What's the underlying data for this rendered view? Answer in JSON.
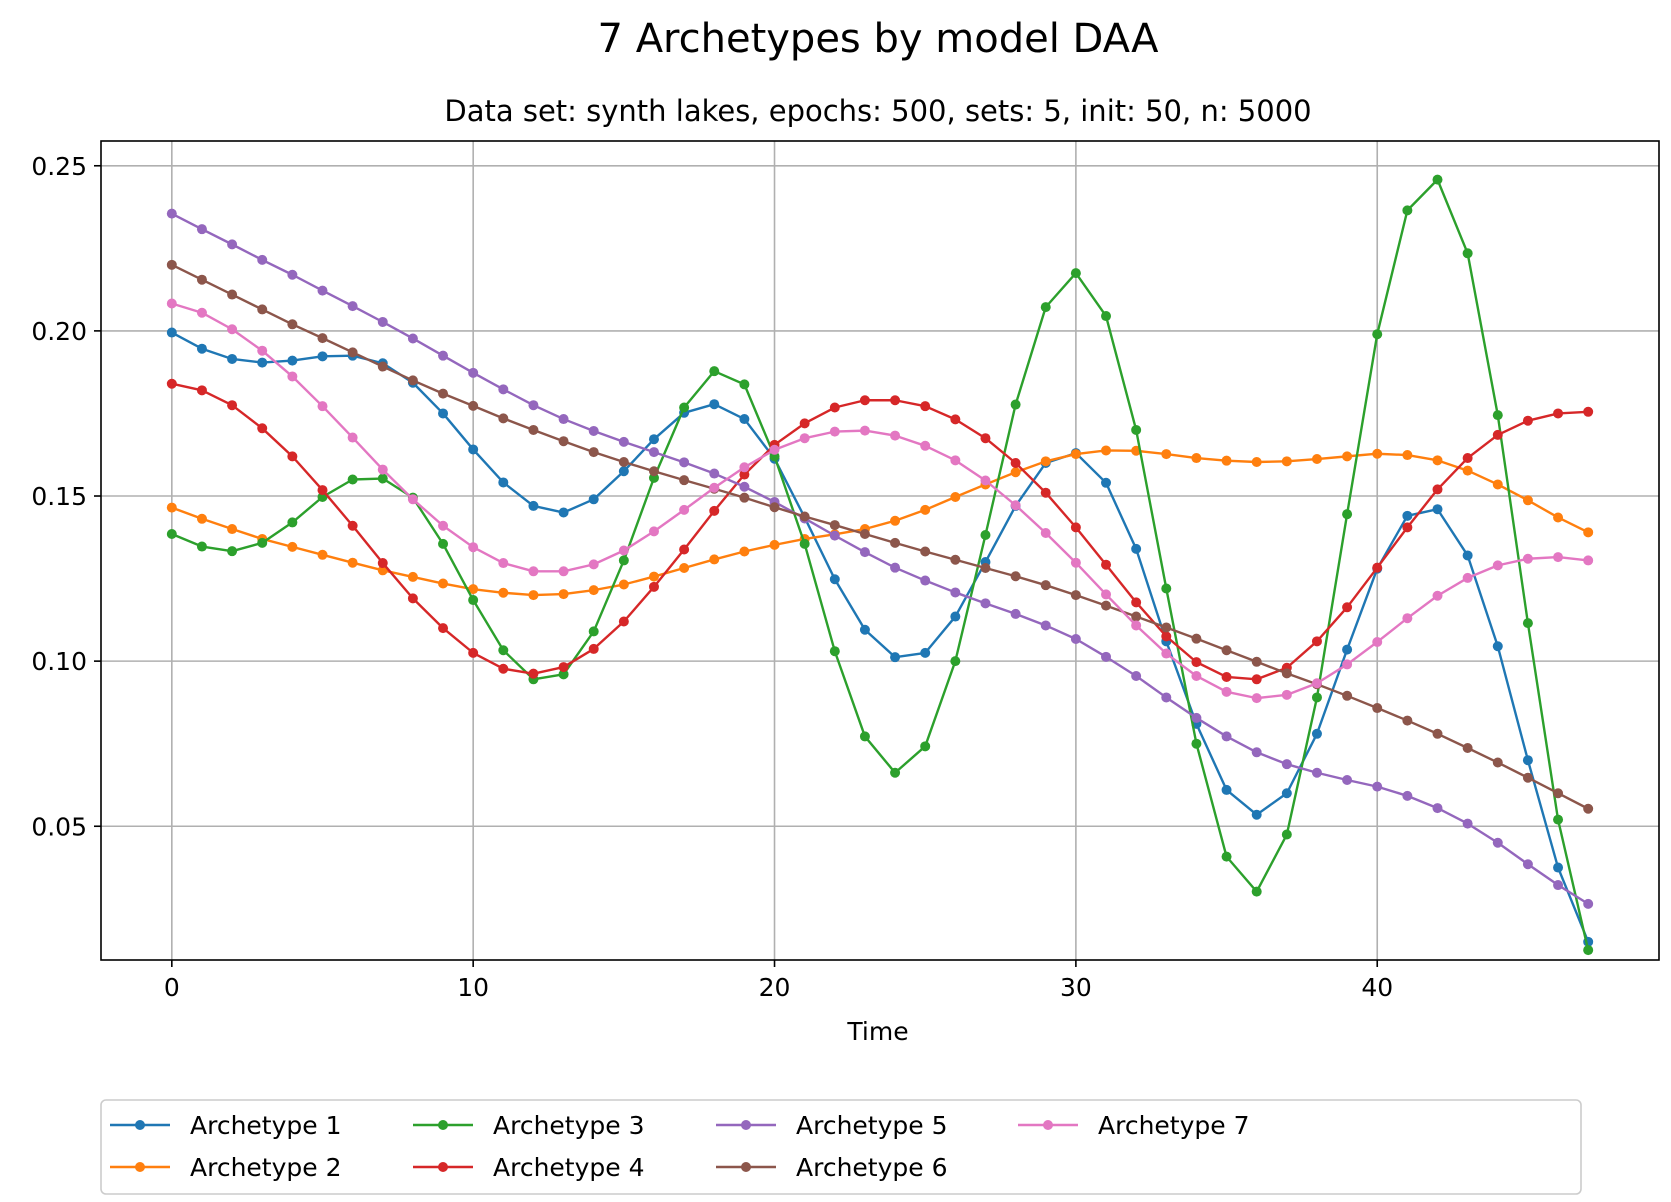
{
  "chart_data": {
    "type": "line",
    "title": "7 Archetypes by model DAA",
    "subtitle": "Data set: synth lakes, epochs: 500, sets: 5, init: 50, n: 5000",
    "xlabel": "Time",
    "ylabel": "",
    "xlim": [
      -2.35,
      49.35
    ],
    "ylim": [
      0.0095,
      0.2575
    ],
    "x_ticks": [
      0,
      10,
      20,
      30,
      40
    ],
    "y_ticks": [
      0.05,
      0.1,
      0.15,
      0.2,
      0.25
    ],
    "x_tick_labels": [
      "0",
      "10",
      "20",
      "30",
      "40"
    ],
    "y_tick_labels": [
      "0.05",
      "0.10",
      "0.15",
      "0.20",
      "0.25"
    ],
    "grid": true,
    "legend_position": "bottom-center",
    "x": [
      0,
      1,
      2,
      3,
      4,
      5,
      6,
      7,
      8,
      9,
      10,
      11,
      12,
      13,
      14,
      15,
      16,
      17,
      18,
      19,
      20,
      21,
      22,
      23,
      24,
      25,
      26,
      27,
      28,
      29,
      30,
      31,
      32,
      33,
      34,
      35,
      36,
      37,
      38,
      39,
      40,
      41,
      42,
      43,
      44,
      45,
      46,
      47
    ],
    "series": [
      {
        "name": "Archetype 1",
        "color": "#1f77b4",
        "values": [
          0.1995,
          0.1946,
          0.1915,
          0.1904,
          0.191,
          0.1923,
          0.1925,
          0.1902,
          0.1843,
          0.175,
          0.1641,
          0.1541,
          0.147,
          0.145,
          0.149,
          0.1575,
          0.1672,
          0.1752,
          0.1778,
          0.1733,
          0.1613,
          0.1435,
          0.1248,
          0.1095,
          0.1012,
          0.1025,
          0.1135,
          0.13,
          0.147,
          0.16,
          0.163,
          0.154,
          0.134,
          0.106,
          0.081,
          0.061,
          0.0535,
          0.06,
          0.078,
          0.1035,
          0.128,
          0.144,
          0.146,
          0.132,
          0.1045,
          0.07,
          0.0375,
          0.015
        ]
      },
      {
        "name": "Archetype 2",
        "color": "#ff7f0e",
        "values": [
          0.1465,
          0.1431,
          0.14,
          0.137,
          0.1346,
          0.1322,
          0.1298,
          0.1275,
          0.1255,
          0.1235,
          0.1218,
          0.1207,
          0.12,
          0.1203,
          0.1215,
          0.1232,
          0.1256,
          0.1282,
          0.1308,
          0.1332,
          0.1352,
          0.137,
          0.1384,
          0.14,
          0.1425,
          0.1458,
          0.1497,
          0.1535,
          0.1572,
          0.1605,
          0.1627,
          0.1638,
          0.1637,
          0.1627,
          0.1615,
          0.1607,
          0.1603,
          0.1605,
          0.1612,
          0.162,
          0.1628,
          0.1624,
          0.1608,
          0.1577,
          0.1535,
          0.1487,
          0.1435,
          0.139
        ]
      },
      {
        "name": "Archetype 3",
        "color": "#2ca02c",
        "values": [
          0.1385,
          0.1347,
          0.1333,
          0.1358,
          0.142,
          0.1497,
          0.155,
          0.1553,
          0.1495,
          0.1355,
          0.1185,
          0.1033,
          0.0945,
          0.096,
          0.109,
          0.1305,
          0.1555,
          0.1768,
          0.1878,
          0.1838,
          0.162,
          0.1355,
          0.103,
          0.0772,
          0.0662,
          0.0742,
          0.1,
          0.1382,
          0.1777,
          0.2072,
          0.2175,
          0.2045,
          0.17,
          0.122,
          0.075,
          0.0408,
          0.0302,
          0.0475,
          0.089,
          0.1445,
          0.199,
          0.2365,
          0.2458,
          0.2235,
          0.1745,
          0.1115,
          0.052,
          0.0125
        ]
      },
      {
        "name": "Archetype 4",
        "color": "#d62728",
        "values": [
          0.184,
          0.182,
          0.1775,
          0.1705,
          0.162,
          0.1518,
          0.141,
          0.1297,
          0.119,
          0.11,
          0.1025,
          0.0977,
          0.0962,
          0.0982,
          0.1037,
          0.112,
          0.1225,
          0.1338,
          0.1455,
          0.1565,
          0.1655,
          0.172,
          0.1768,
          0.179,
          0.179,
          0.1772,
          0.1732,
          0.1675,
          0.16,
          0.151,
          0.1405,
          0.1292,
          0.1178,
          0.1075,
          0.0997,
          0.0952,
          0.0945,
          0.098,
          0.106,
          0.1163,
          0.1283,
          0.1405,
          0.152,
          0.1615,
          0.1685,
          0.1728,
          0.175,
          0.1755
        ]
      },
      {
        "name": "Archetype 5",
        "color": "#9467bd",
        "values": [
          0.2355,
          0.2308,
          0.2262,
          0.2215,
          0.217,
          0.2122,
          0.2075,
          0.2027,
          0.1977,
          0.1925,
          0.1873,
          0.1823,
          0.1775,
          0.1733,
          0.1697,
          0.1664,
          0.1633,
          0.1602,
          0.1568,
          0.1528,
          0.1482,
          0.1432,
          0.138,
          0.133,
          0.1283,
          0.1244,
          0.1208,
          0.1175,
          0.1143,
          0.1108,
          0.1067,
          0.1013,
          0.0955,
          0.089,
          0.0828,
          0.0772,
          0.0724,
          0.0688,
          0.0662,
          0.064,
          0.062,
          0.0592,
          0.0555,
          0.0508,
          0.045,
          0.0385,
          0.0322,
          0.0265
        ]
      },
      {
        "name": "Archetype 6",
        "color": "#8c564b",
        "values": [
          0.22,
          0.2155,
          0.211,
          0.2065,
          0.202,
          0.1978,
          0.1935,
          0.1892,
          0.185,
          0.181,
          0.1773,
          0.1735,
          0.17,
          0.1666,
          0.1633,
          0.1603,
          0.1575,
          0.1548,
          0.1522,
          0.1495,
          0.1466,
          0.1438,
          0.1412,
          0.1385,
          0.1358,
          0.1332,
          0.1307,
          0.1282,
          0.1257,
          0.123,
          0.12,
          0.1168,
          0.1135,
          0.1102,
          0.1068,
          0.1033,
          0.0998,
          0.0963,
          0.093,
          0.0895,
          0.0858,
          0.082,
          0.078,
          0.0737,
          0.0693,
          0.0647,
          0.06,
          0.0553
        ]
      },
      {
        "name": "Archetype 7",
        "color": "#e377c2",
        "values": [
          0.2083,
          0.2055,
          0.2005,
          0.194,
          0.1862,
          0.1772,
          0.1677,
          0.158,
          0.149,
          0.141,
          0.1345,
          0.1297,
          0.1272,
          0.1272,
          0.1293,
          0.1335,
          0.1393,
          0.1458,
          0.1525,
          0.1587,
          0.164,
          0.1675,
          0.1695,
          0.1698,
          0.1683,
          0.1652,
          0.1608,
          0.1547,
          0.1472,
          0.1388,
          0.1298,
          0.1202,
          0.1108,
          0.1023,
          0.0955,
          0.0907,
          0.0888,
          0.0898,
          0.0933,
          0.099,
          0.1058,
          0.113,
          0.1198,
          0.1252,
          0.129,
          0.131,
          0.1315,
          0.1305
        ]
      }
    ]
  }
}
